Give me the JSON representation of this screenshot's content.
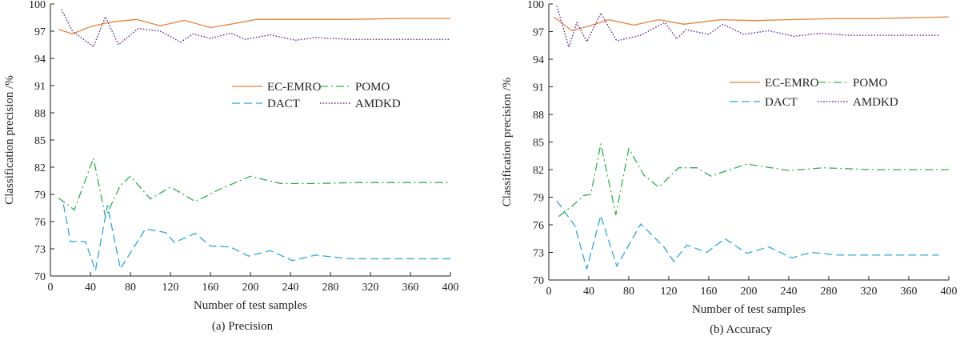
{
  "colors": {
    "ec_emro": "#e8823a",
    "pomo": "#2db04b",
    "dact": "#2aa8dc",
    "amdkd": "#6a2a8e",
    "axis": "#222222"
  },
  "chart_data": [
    {
      "type": "line",
      "caption": "(a) Precision",
      "xlabel": "Number of test samples",
      "ylabel": "Classification precision /%",
      "xlim": [
        0,
        400
      ],
      "ylim": [
        70,
        100
      ],
      "xticks": [
        0,
        40,
        80,
        120,
        160,
        200,
        240,
        280,
        320,
        360,
        400
      ],
      "yticks": [
        70,
        73,
        76,
        79,
        82,
        85,
        88,
        91,
        94,
        97,
        100
      ],
      "ytick_labels": [
        "70",
        "73",
        "76",
        "79",
        "82",
        "85",
        "88",
        "91",
        "94",
        "97",
        "100"
      ],
      "legend_position": "center-right",
      "series": [
        {
          "name": "EC-EMRO",
          "style": "solid",
          "color_key": "ec_emro",
          "x": [
            8,
            22,
            40,
            60,
            86,
            110,
            134,
            160,
            182,
            206,
            232,
            260,
            300,
            350,
            400
          ],
          "y": [
            97.2,
            96.7,
            97.5,
            98.0,
            98.3,
            97.6,
            98.2,
            97.4,
            97.8,
            98.3,
            98.3,
            98.3,
            98.3,
            98.4,
            98.4
          ]
        },
        {
          "name": "POMO",
          "style": "dashdot",
          "color_key": "pomo",
          "x": [
            8,
            24,
            43,
            55,
            70,
            80,
            100,
            120,
            130,
            145,
            168,
            200,
            230,
            265,
            300,
            350,
            400
          ],
          "y": [
            78.6,
            77.3,
            83.0,
            76.5,
            80.0,
            81.0,
            78.5,
            79.8,
            79.2,
            78.2,
            79.5,
            81.0,
            80.2,
            80.2,
            80.3,
            80.3,
            80.3
          ]
        },
        {
          "name": "DACT",
          "style": "dashed",
          "color_key": "dact",
          "x": [
            13,
            20,
            35,
            45,
            57,
            70,
            95,
            115,
            124,
            145,
            160,
            180,
            198,
            220,
            242,
            265,
            300,
            350,
            400
          ],
          "y": [
            77.9,
            73.8,
            73.8,
            70.6,
            77.8,
            70.8,
            75.2,
            74.8,
            73.7,
            74.7,
            73.3,
            73.2,
            72.2,
            72.8,
            71.7,
            72.3,
            71.9,
            71.9,
            71.9
          ]
        },
        {
          "name": "AMDKD",
          "style": "dotted",
          "color_key": "amdkd",
          "x": [
            11,
            22,
            43,
            55,
            68,
            88,
            110,
            130,
            143,
            160,
            180,
            195,
            220,
            245,
            265,
            300,
            350,
            400
          ],
          "y": [
            99.4,
            97.0,
            95.3,
            98.6,
            95.5,
            97.3,
            97.0,
            95.8,
            96.7,
            96.2,
            96.8,
            96.1,
            96.6,
            96.0,
            96.3,
            96.1,
            96.1,
            96.1
          ]
        }
      ]
    },
    {
      "type": "line",
      "caption": "(b) Accuracy",
      "xlabel": "Number of test samples",
      "ylabel": "Classification precision /%",
      "xlim": [
        0,
        400
      ],
      "ylim": [
        70,
        100
      ],
      "xticks": [
        0,
        40,
        80,
        120,
        160,
        200,
        240,
        280,
        320,
        360,
        400
      ],
      "yticks": [
        70,
        73,
        76,
        79,
        82,
        85,
        88,
        91,
        94,
        97,
        100
      ],
      "ytick_labels": [
        "70",
        "73",
        "76",
        "79",
        "82",
        "85",
        "88",
        "91",
        "94",
        "97",
        "100"
      ],
      "legend_position": "center-right",
      "series": [
        {
          "name": "EC-EMRO",
          "style": "solid",
          "color_key": "ec_emro",
          "x": [
            5,
            23,
            40,
            60,
            85,
            110,
            135,
            172,
            205,
            240,
            280,
            320,
            360,
            400
          ],
          "y": [
            98.6,
            97.1,
            97.6,
            98.3,
            97.7,
            98.3,
            97.8,
            98.3,
            98.2,
            98.3,
            98.4,
            98.4,
            98.5,
            98.6
          ]
        },
        {
          "name": "POMO",
          "style": "dashdot",
          "color_key": "pomo",
          "x": [
            10,
            25,
            35,
            42,
            52,
            67,
            80,
            95,
            110,
            130,
            148,
            162,
            198,
            240,
            275,
            320,
            360,
            400
          ],
          "y": [
            76.9,
            78.2,
            79.2,
            79.3,
            84.8,
            77.1,
            84.3,
            81.4,
            80.1,
            82.2,
            82.2,
            81.3,
            82.6,
            81.9,
            82.2,
            82.0,
            82.0,
            82.0
          ]
        },
        {
          "name": "DACT",
          "style": "dashed",
          "color_key": "dact",
          "x": [
            8,
            26,
            38,
            52,
            68,
            92,
            115,
            125,
            138,
            158,
            176,
            198,
            220,
            243,
            262,
            290,
            320,
            360,
            390
          ],
          "y": [
            78.6,
            75.9,
            71.2,
            77.0,
            71.5,
            76.1,
            73.6,
            72.0,
            73.8,
            73.0,
            74.5,
            72.9,
            73.6,
            72.4,
            73.0,
            72.7,
            72.7,
            72.7,
            72.7
          ]
        },
        {
          "name": "AMDKD",
          "style": "dotted",
          "color_key": "amdkd",
          "x": [
            8,
            20,
            28,
            38,
            52,
            68,
            92,
            116,
            128,
            137,
            160,
            174,
            195,
            220,
            245,
            270,
            300,
            350,
            390
          ],
          "y": [
            99.8,
            95.3,
            98.0,
            95.9,
            99.0,
            96.0,
            96.6,
            98.0,
            96.2,
            97.2,
            96.7,
            97.8,
            96.7,
            97.1,
            96.5,
            96.8,
            96.6,
            96.6,
            96.6
          ]
        }
      ]
    }
  ]
}
